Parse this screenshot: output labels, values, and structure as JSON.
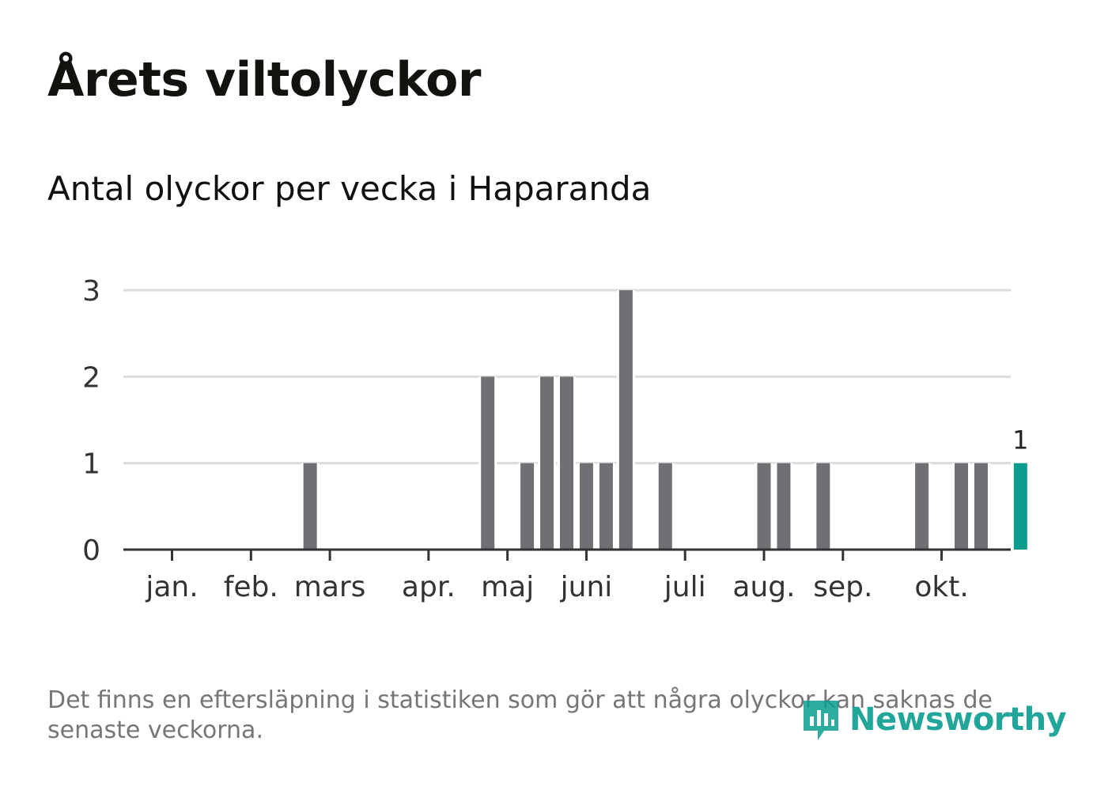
{
  "title": "Årets viltolyckor",
  "subtitle": "Antal olyckor per vecka i Haparanda",
  "footnote": "Det finns en eftersläpning i statistiken som gör att några olyckor kan saknas de senaste veckorna.",
  "brand": {
    "name": "Newsworthy",
    "color": "#0a9d8f"
  },
  "colors": {
    "bar": "#707074",
    "highlight": "#0a9d8f",
    "grid": "#dcdcdc",
    "axis": "#333333"
  },
  "chart_data": {
    "type": "bar",
    "title": "Antal olyckor per vecka i Haparanda",
    "xlabel": "",
    "ylabel": "",
    "ylim": [
      0,
      3
    ],
    "yticks": [
      0,
      1,
      2,
      3
    ],
    "x": [
      1,
      2,
      3,
      4,
      5,
      6,
      7,
      8,
      9,
      10,
      11,
      12,
      13,
      14,
      15,
      16,
      17,
      18,
      19,
      20,
      21,
      22,
      23,
      24,
      25,
      26,
      27,
      28,
      29,
      30,
      31,
      32,
      33,
      34,
      35,
      36,
      37,
      38,
      39,
      40,
      41,
      42,
      43,
      44
    ],
    "values": [
      0,
      0,
      0,
      0,
      0,
      0,
      0,
      1,
      0,
      0,
      0,
      0,
      0,
      0,
      0,
      0,
      2,
      0,
      1,
      2,
      2,
      1,
      1,
      3,
      0,
      1,
      0,
      0,
      0,
      0,
      1,
      1,
      0,
      1,
      0,
      0,
      0,
      0,
      1,
      0,
      1,
      1,
      0,
      1
    ],
    "highlight_index": 43,
    "highlight_label": "1",
    "month_ticks": [
      {
        "label": "jan.",
        "x": 1.0
      },
      {
        "label": "feb.",
        "x": 5.0
      },
      {
        "label": "mars",
        "x": 9.0
      },
      {
        "label": "apr.",
        "x": 14.0
      },
      {
        "label": "maj",
        "x": 18.0
      },
      {
        "label": "juni",
        "x": 22.0
      },
      {
        "label": "juli",
        "x": 27.0
      },
      {
        "label": "aug.",
        "x": 31.0
      },
      {
        "label": "sep.",
        "x": 35.0
      },
      {
        "label": "okt.",
        "x": 40.0
      }
    ]
  }
}
